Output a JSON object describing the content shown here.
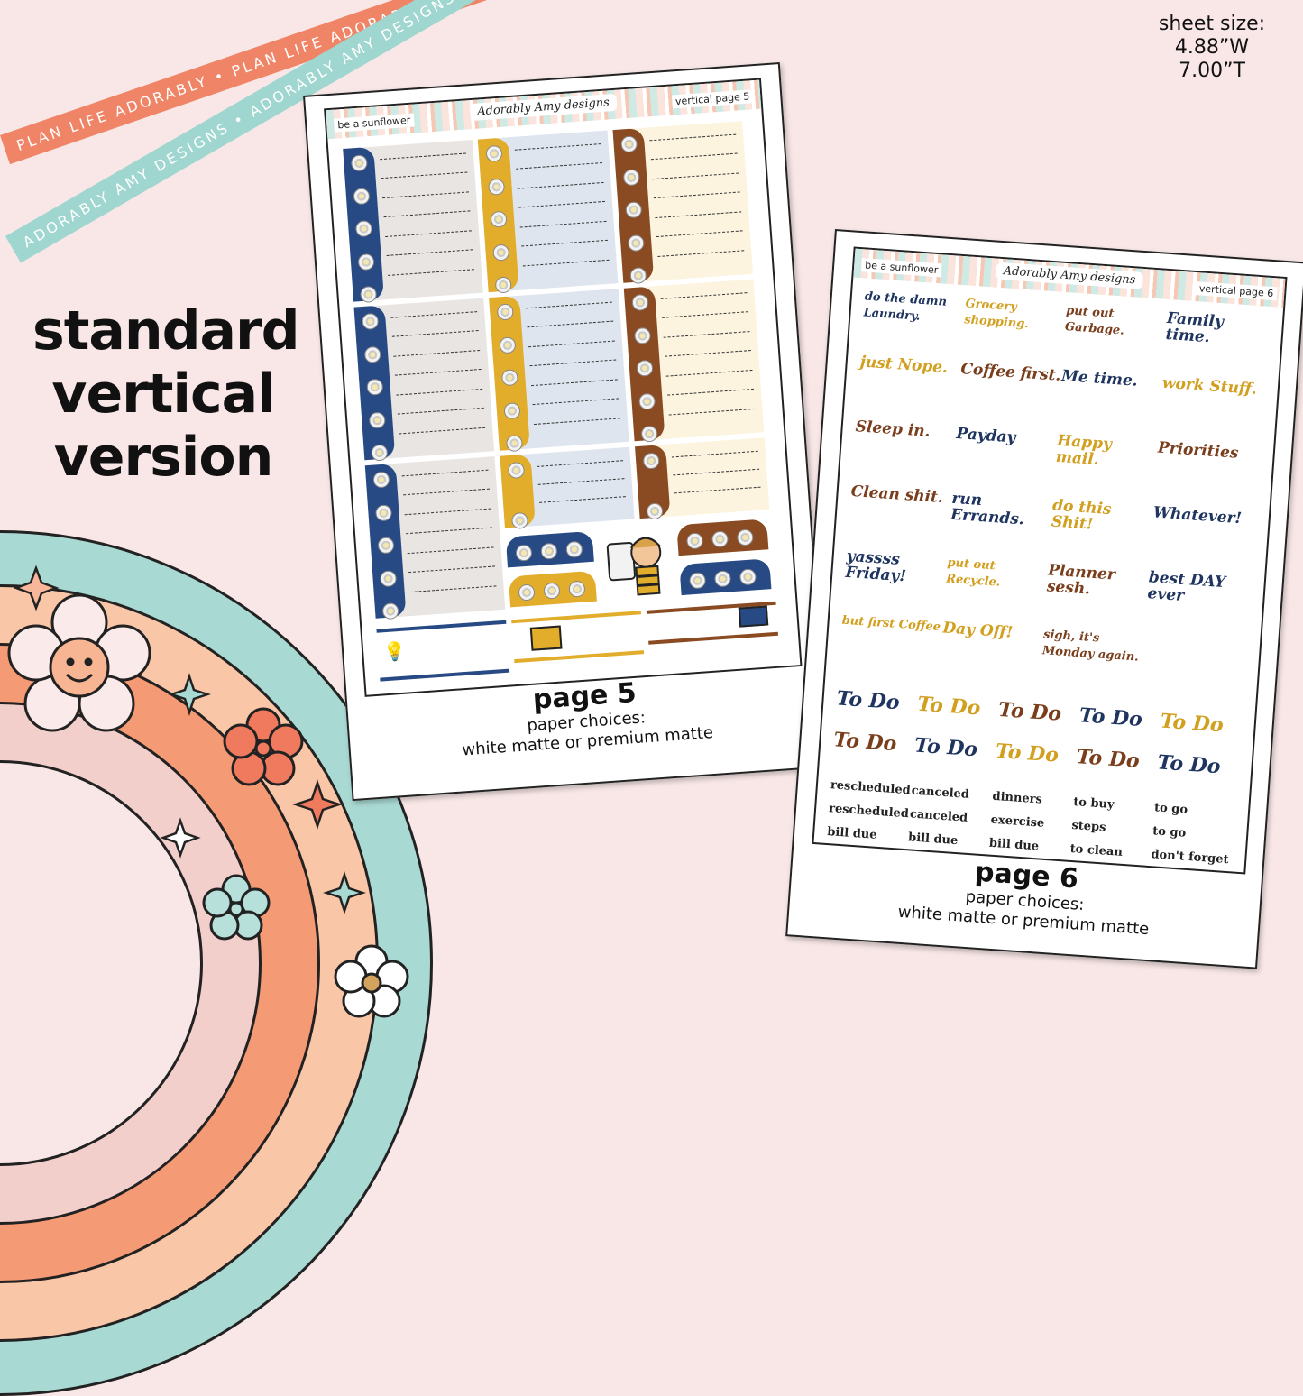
{
  "ribbons": {
    "orange_text": "PLAN LIFE ADORABLY • PLAN LIFE ADORABLY • PLAN LIFE ADORABLY •",
    "mint_text": "ADORABLY AMY DESIGNS • ADORABLY AMY DESIGNS • ADORABLY AMY DESIGNS •"
  },
  "sheet_size": {
    "label": "sheet size:",
    "width": "4.88”W",
    "height": "7.00”T"
  },
  "title": {
    "line1": "standard",
    "line2": "vertical",
    "line3": "version"
  },
  "page5": {
    "theme": "be a sunflower",
    "brand": "Adorably Amy designs",
    "label": "vertical page 5",
    "caption": "page 5",
    "paper_label": "paper choices:",
    "paper_options": "white matte or premium matte"
  },
  "page6": {
    "theme": "be a sunflower",
    "brand": "Adorably Amy designs",
    "label": "vertical page 6",
    "caption": "page 6",
    "paper_label": "paper choices:",
    "paper_options": "white matte or premium matte",
    "scripts": [
      {
        "text": "do the damn Laundry.",
        "color": "#1f3560"
      },
      {
        "text": "Grocery shopping.",
        "color": "#d2a020"
      },
      {
        "text": "put out Garbage.",
        "color": "#7a3e1d"
      },
      {
        "text": "Family time.",
        "color": "#1f3560"
      },
      {
        "text": "just Nope.",
        "color": "#d2a020"
      },
      {
        "text": "Coffee first.",
        "color": "#7a3e1d"
      },
      {
        "text": "Me time.",
        "color": "#1f3560"
      },
      {
        "text": "work Stuff.",
        "color": "#d2a020"
      },
      {
        "text": "Sleep in.",
        "color": "#7a3e1d"
      },
      {
        "text": "Payday",
        "color": "#1f3560"
      },
      {
        "text": "Happy mail.",
        "color": "#d2a020"
      },
      {
        "text": "Priorities",
        "color": "#7a3e1d"
      },
      {
        "text": "Clean shit.",
        "color": "#7a3e1d"
      },
      {
        "text": "run Errands.",
        "color": "#1f3560"
      },
      {
        "text": "do this Shit!",
        "color": "#d2a020"
      },
      {
        "text": "Whatever!",
        "color": "#1f3560"
      },
      {
        "text": "yassss Friday!",
        "color": "#1f3560"
      },
      {
        "text": "put out Recycle.",
        "color": "#d2a020"
      },
      {
        "text": "Planner sesh.",
        "color": "#7a3e1d"
      },
      {
        "text": "best DAY ever",
        "color": "#1f3560"
      },
      {
        "text": "but first Coffee",
        "color": "#d2a020"
      },
      {
        "text": "Day Off!",
        "color": "#d2a020"
      },
      {
        "text": "sigh, it's Monday again.",
        "color": "#7a3e1d"
      }
    ],
    "todo": "To Do",
    "small_labels": [
      [
        "rescheduled",
        "canceled",
        "dinners",
        "to buy",
        "to go"
      ],
      [
        "rescheduled",
        "canceled",
        "exercise",
        "steps",
        "to go"
      ],
      [
        "bill due",
        "bill due",
        "bill due",
        "to clean",
        "don't forget"
      ]
    ]
  },
  "colors": {
    "navy": "#274a85",
    "mustard": "#e2ad2b",
    "brown": "#8a4a22",
    "coral": "#f08466",
    "mint": "#9fd6cf",
    "blush": "#f8e7e6"
  }
}
